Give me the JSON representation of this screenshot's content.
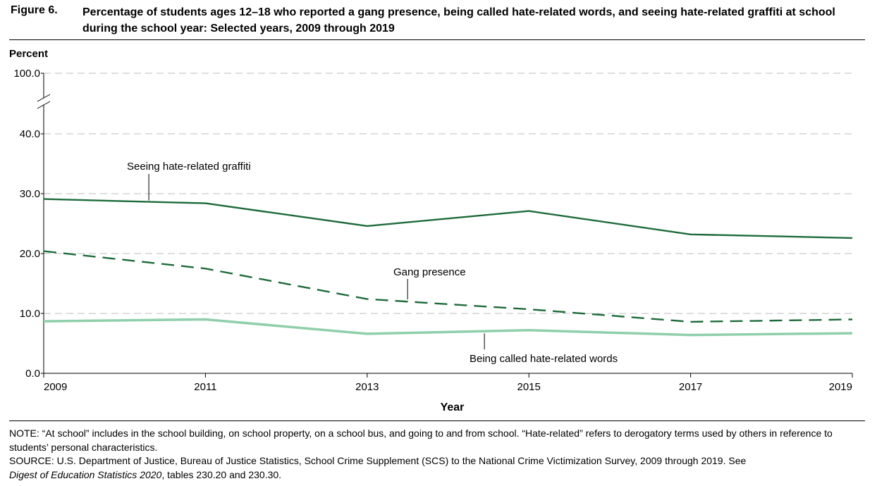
{
  "figure": {
    "label": "Figure 6.",
    "title": "Percentage of students ages 12–18 who reported a gang presence, being called hate-related words, and seeing hate-related graffiti at school during the school year: Selected years, 2009 through 2019"
  },
  "chart_data": {
    "type": "line",
    "title": "Percentage of students ages 12–18 who reported a gang presence, being called hate-related words, and seeing hate-related graffiti at school during the school year: Selected years, 2009 through 2019",
    "xlabel": "Year",
    "ylabel": "Percent",
    "x": [
      2009,
      2011,
      2013,
      2015,
      2017,
      2019
    ],
    "x_tick_labels": [
      "2009",
      "2011",
      "2013",
      "2015",
      "2017",
      "2019"
    ],
    "y_tick_labels": [
      "0.0",
      "10.0",
      "20.0",
      "30.0",
      "40.0",
      "100.0"
    ],
    "y_axis_break": "between 40.0 and 100.0",
    "ylim": [
      0,
      100
    ],
    "grid": "horizontal dashed",
    "series": [
      {
        "name": "Seeing hate-related graffiti",
        "values": [
          29.1,
          28.4,
          24.6,
          27.1,
          23.2,
          22.6
        ],
        "color": "#1d6b3a",
        "style": "solid"
      },
      {
        "name": "Gang presence",
        "values": [
          20.4,
          17.5,
          12.4,
          10.7,
          8.6,
          9.0
        ],
        "color": "#1d6b3a",
        "style": "dashed"
      },
      {
        "name": "Being called hate-related words",
        "values": [
          8.7,
          9.0,
          6.6,
          7.2,
          6.4,
          6.7
        ],
        "color": "#8fcfaa",
        "style": "solid"
      }
    ]
  },
  "note": {
    "note_text": "NOTE: “At school” includes in the school building, on school property, on a school bus, and going to and from school. “Hate-related” refers to derogatory terms used by others in reference to students’ personal characteristics.",
    "source_text": "SOURCE: U.S. Department of Justice, Bureau of Justice Statistics, School Crime Supplement (SCS) to the National Crime Victimization Survey, 2009 through 2019. See",
    "source_italic": "Digest of Education Statistics 2020",
    "source_tail": ", tables 230.20 and 230.30."
  }
}
